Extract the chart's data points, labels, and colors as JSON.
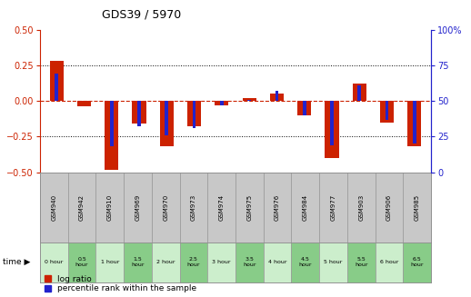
{
  "title": "GDS39 / 5970",
  "samples": [
    "GSM940",
    "GSM942",
    "GSM910",
    "GSM969",
    "GSM970",
    "GSM973",
    "GSM974",
    "GSM975",
    "GSM976",
    "GSM984",
    "GSM977",
    "GSM903",
    "GSM906",
    "GSM985"
  ],
  "time_labels": [
    "0 hour",
    "0.5\nhour",
    "1 hour",
    "1.5\nhour",
    "2 hour",
    "2.5\nhour",
    "3 hour",
    "3.5\nhour",
    "4 hour",
    "4.5\nhour",
    "5 hour",
    "5.5\nhour",
    "6 hour",
    "6.5\nhour"
  ],
  "time_bg": [
    "light",
    "dark",
    "light",
    "dark",
    "light",
    "dark",
    "light",
    "dark",
    "light",
    "dark",
    "light",
    "dark",
    "light",
    "dark"
  ],
  "log_ratio": [
    0.28,
    -0.04,
    -0.48,
    -0.16,
    -0.32,
    -0.18,
    -0.03,
    0.02,
    0.05,
    -0.1,
    -0.4,
    0.12,
    -0.15,
    -0.32
  ],
  "percentile": [
    69,
    50,
    18,
    32,
    26,
    31,
    47,
    51,
    57,
    40,
    19,
    61,
    37,
    20
  ],
  "ylim_left": [
    -0.5,
    0.5
  ],
  "ylim_right": [
    0,
    100
  ],
  "yticks_left": [
    -0.5,
    -0.25,
    0,
    0.25,
    0.5
  ],
  "yticks_right": [
    0,
    25,
    50,
    75,
    100
  ],
  "bar_color_red": "#cc2200",
  "bar_color_blue": "#2222cc",
  "zero_line_color": "#cc2200",
  "bg_gray": "#c8c8c8",
  "bg_green_light": "#cceecc",
  "bg_green_dark": "#88cc88",
  "left_axis_color": "#cc2200",
  "right_axis_color": "#2222cc",
  "legend_red": "log ratio",
  "legend_blue": "percentile rank within the sample",
  "time_arrow_label": "time"
}
